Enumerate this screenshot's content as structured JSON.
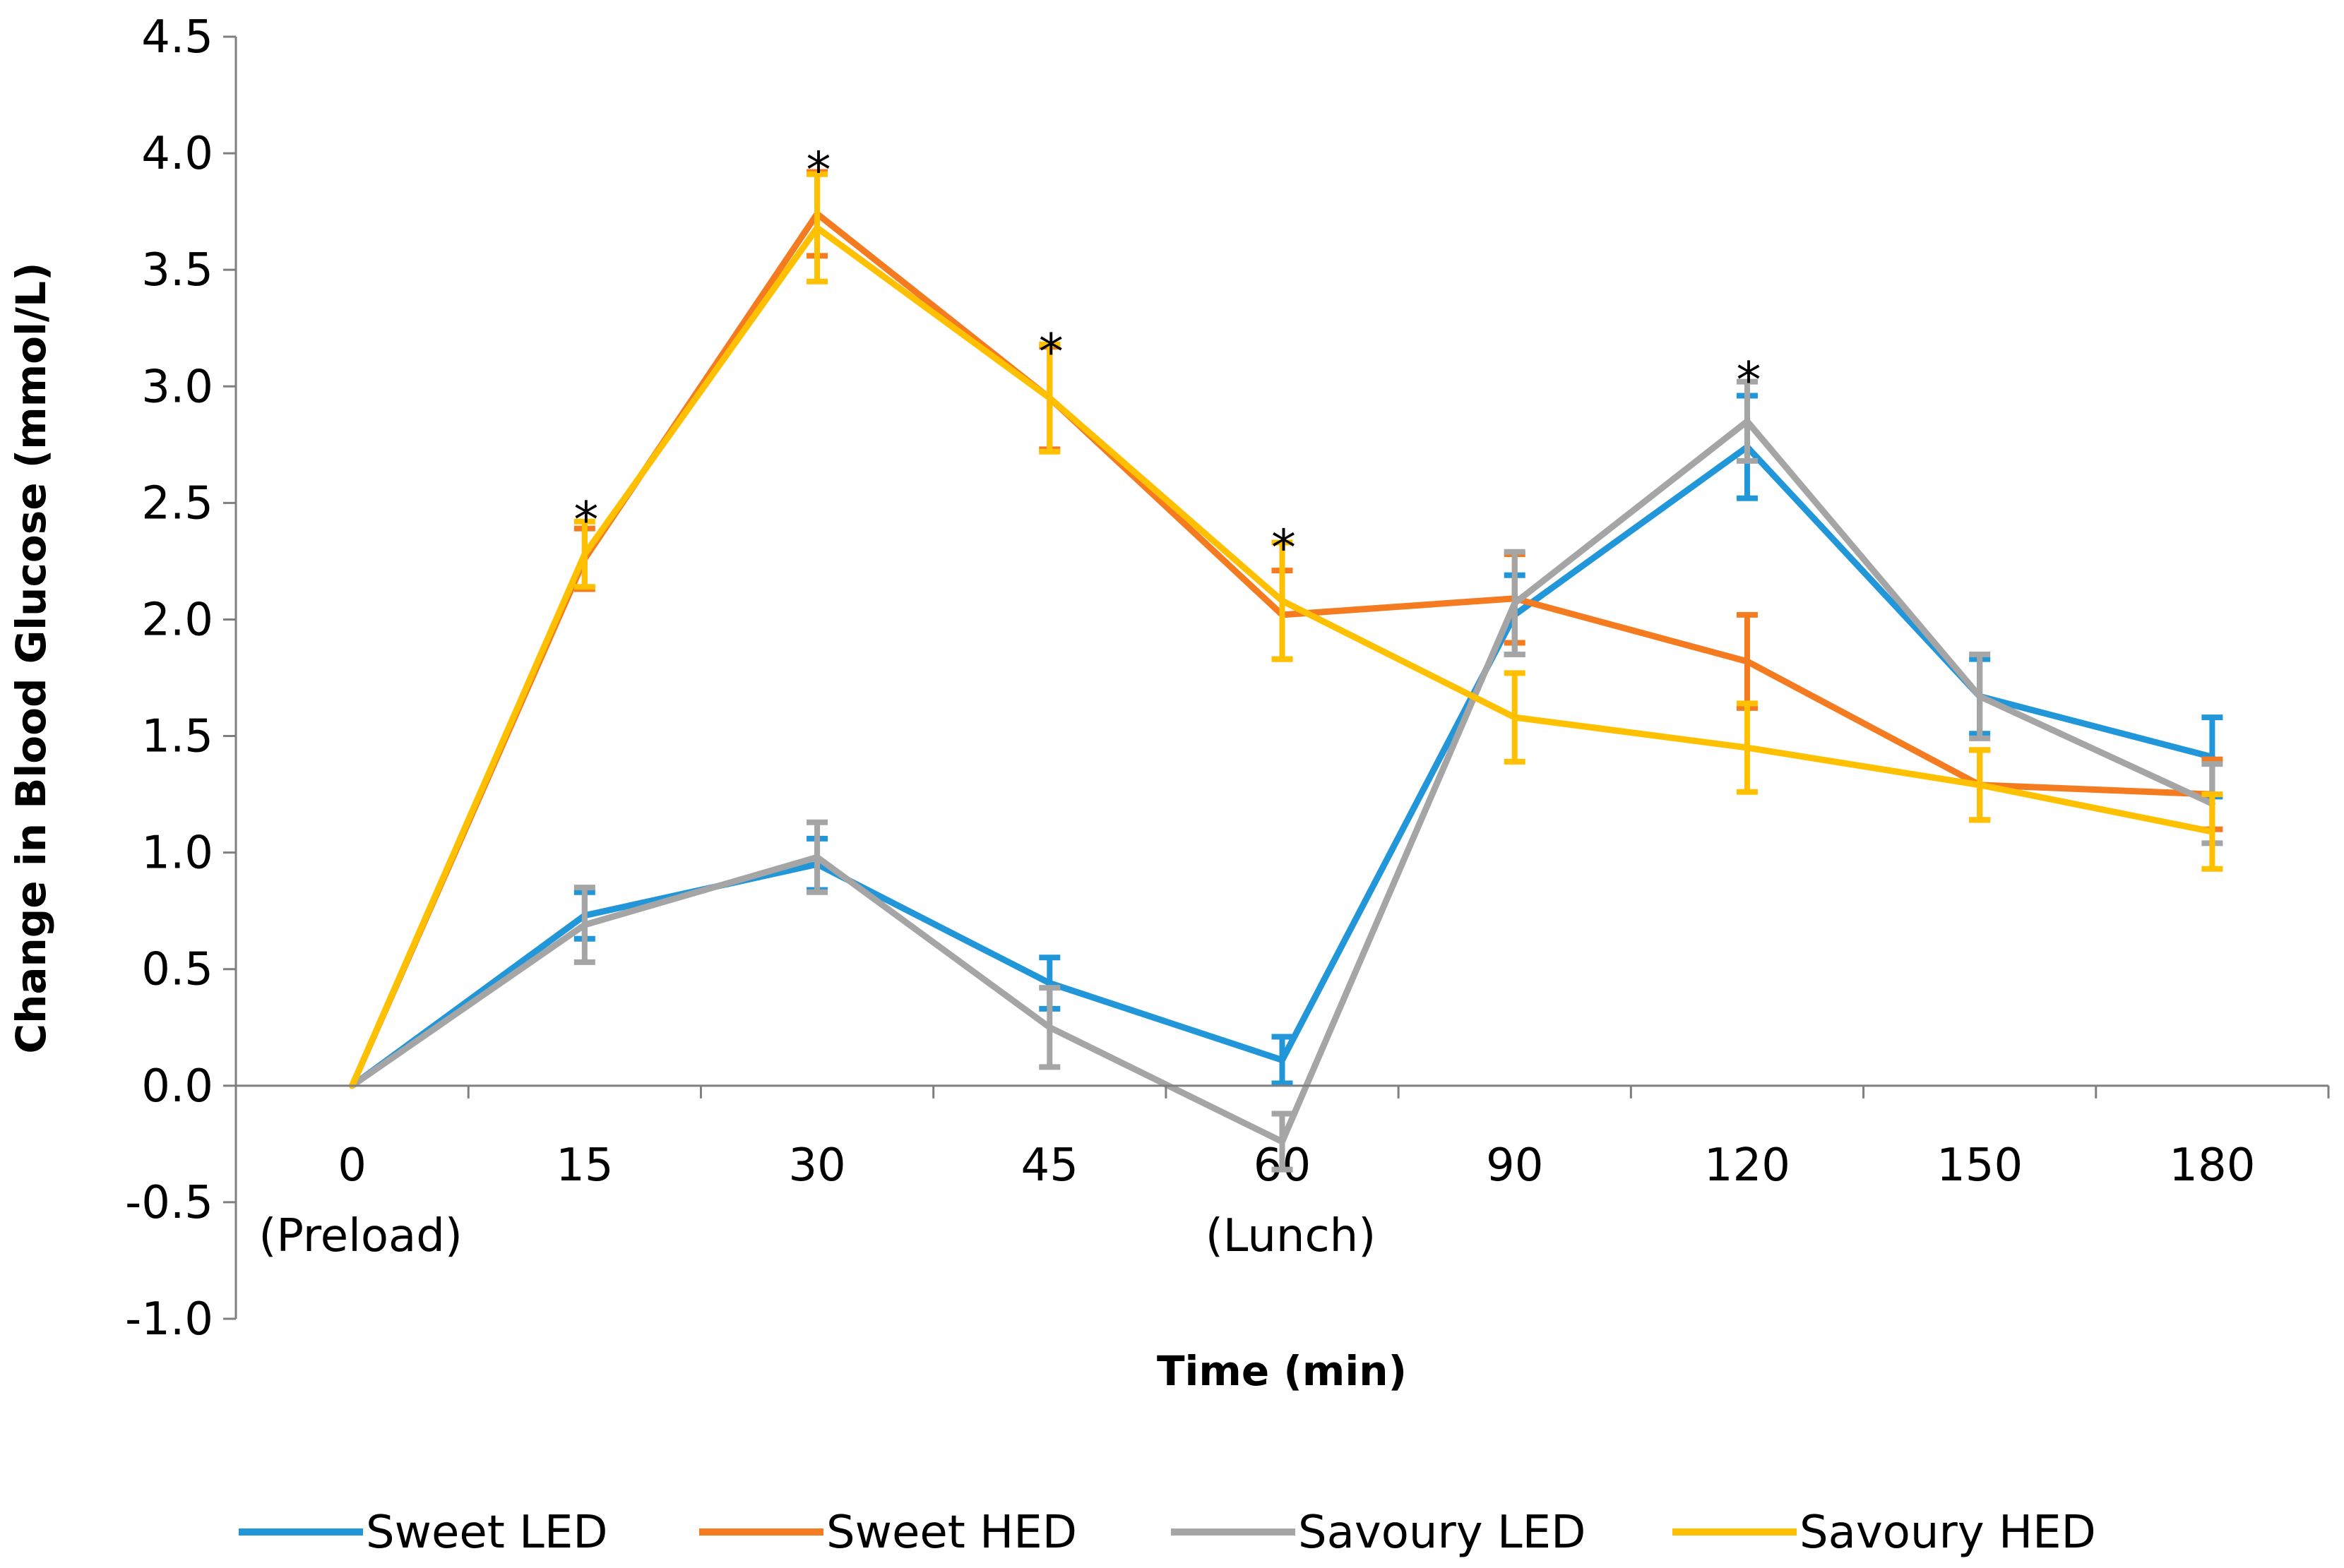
{
  "chart_data": {
    "type": "line",
    "title": "",
    "xlabel": "Time (min)",
    "ylabel": "Change in Blood Glucose (mmol/L)",
    "categories": [
      "0",
      "15",
      "30",
      "45",
      "60",
      "90",
      "120",
      "150",
      "180"
    ],
    "category_sublabels": [
      "(Preload)",
      "",
      "",
      "",
      "(Lunch)",
      "",
      "",
      "",
      ""
    ],
    "ylim": [
      -1.0,
      4.5
    ],
    "yticks": [
      "-1.0",
      "-0.5",
      "0.0",
      "0.5",
      "1.0",
      "1.5",
      "2.0",
      "2.5",
      "3.0",
      "3.5",
      "4.0",
      "4.5"
    ],
    "grid": false,
    "legend_position": "bottom",
    "series": [
      {
        "name": "Sweet LED",
        "color": "#2196D9",
        "values": [
          0,
          0.73,
          0.95,
          0.44,
          0.11,
          2.02,
          2.74,
          1.67,
          1.41
        ],
        "errors": [
          0,
          0.1,
          0.11,
          0.11,
          0.1,
          0.17,
          0.22,
          0.16,
          0.17
        ]
      },
      {
        "name": "Sweet HED",
        "color": "#F47B20",
        "values": [
          0,
          2.26,
          3.74,
          2.95,
          2.02,
          2.09,
          1.82,
          1.29,
          1.25
        ],
        "errors": [
          0,
          0.13,
          0.18,
          0.22,
          0.19,
          0.19,
          0.2,
          0.15,
          0.15
        ]
      },
      {
        "name": "Savoury LED",
        "color": "#A5A5A5",
        "values": [
          0,
          0.69,
          0.98,
          0.25,
          -0.24,
          2.07,
          2.85,
          1.67,
          1.21
        ],
        "errors": [
          0,
          0.16,
          0.15,
          0.17,
          0.12,
          0.22,
          0.17,
          0.18,
          0.17
        ]
      },
      {
        "name": "Savoury HED",
        "color": "#FFC000",
        "values": [
          0,
          2.28,
          3.68,
          2.95,
          2.08,
          1.58,
          1.45,
          1.29,
          1.09
        ],
        "errors": [
          0,
          0.14,
          0.23,
          0.23,
          0.25,
          0.19,
          0.19,
          0.15,
          0.16
        ]
      }
    ],
    "annotations": [
      {
        "text": "*",
        "category": "15",
        "y": 2.5
      },
      {
        "text": "*",
        "category": "30",
        "y": 4.0
      },
      {
        "text": "*",
        "category": "45",
        "y": 3.22
      },
      {
        "text": "*",
        "category": "60",
        "y": 2.38
      },
      {
        "text": "*",
        "category": "120",
        "y": 3.1
      }
    ]
  }
}
